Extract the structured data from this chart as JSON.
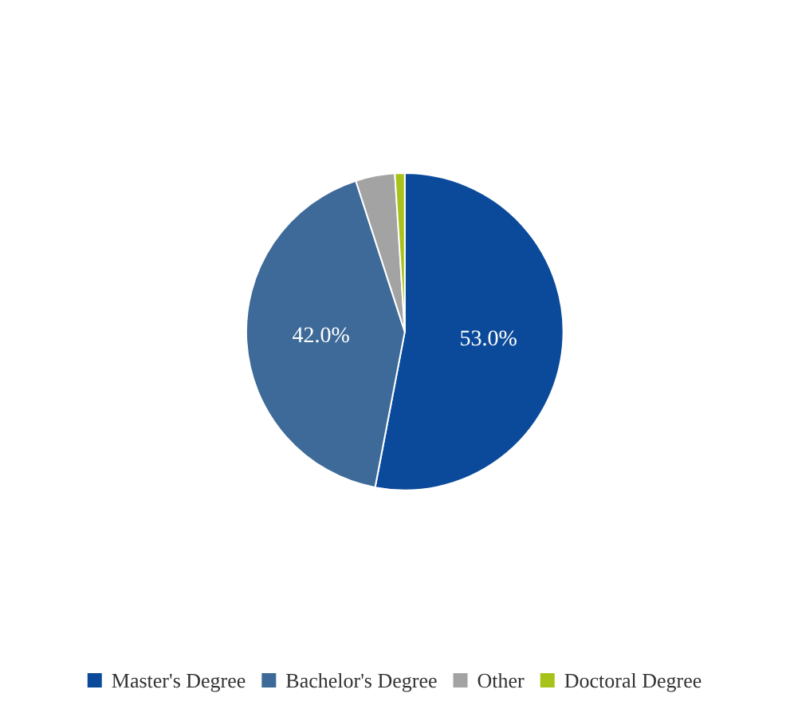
{
  "chart_data": {
    "type": "pie",
    "categories": [
      "Master's Degree",
      "Bachelor's Degree",
      "Other",
      "Doctoral Degree"
    ],
    "values": [
      53.0,
      42.0,
      4.0,
      1.0
    ],
    "colors": [
      "#0b4a9a",
      "#3d6a98",
      "#a3a3a3",
      "#a8c21a"
    ],
    "value_labels": [
      "53.0%",
      "42.0%",
      null,
      null
    ],
    "legend": "bottom"
  }
}
